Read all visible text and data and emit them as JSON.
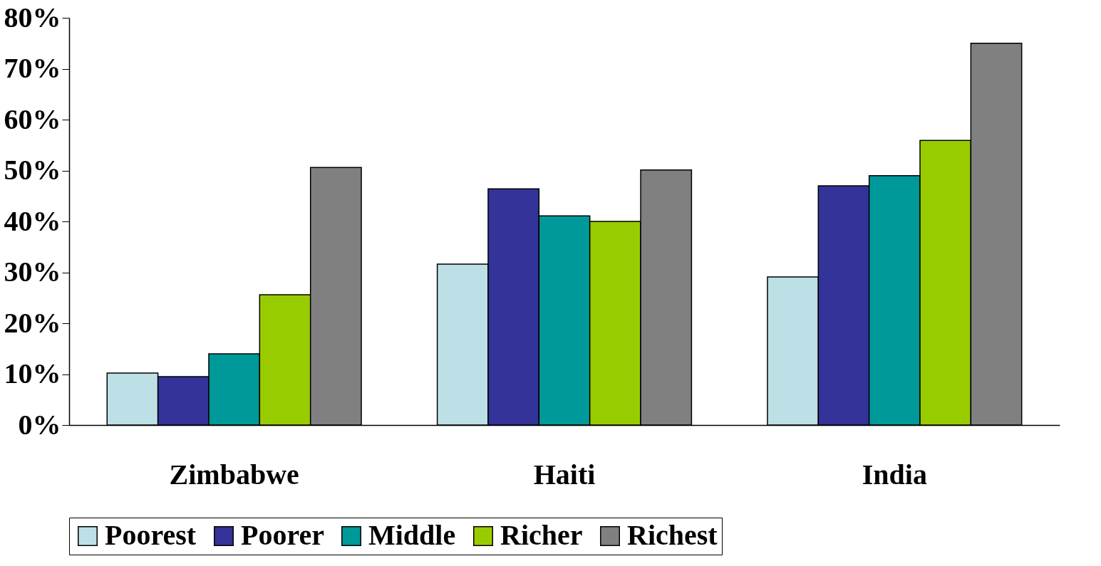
{
  "chart_data": {
    "type": "bar",
    "categories": [
      "Zimbabwe",
      "Haiti",
      "India"
    ],
    "series": [
      {
        "name": "Poorest",
        "color": "#bde0e6",
        "values": [
          10.2,
          31.6,
          29.1
        ]
      },
      {
        "name": "Poorer",
        "color": "#333399",
        "values": [
          9.5,
          46.4,
          47.0
        ]
      },
      {
        "name": "Middle",
        "color": "#009999",
        "values": [
          14.0,
          41.1,
          49.0
        ]
      },
      {
        "name": "Richer",
        "color": "#99cc00",
        "values": [
          25.6,
          40.0,
          55.9
        ]
      },
      {
        "name": "Richest",
        "color": "#808080",
        "values": [
          50.6,
          50.1,
          75.0
        ]
      }
    ],
    "ylim": [
      0,
      80
    ],
    "yticks": [
      {
        "value": 0,
        "label": "0%"
      },
      {
        "value": 10,
        "label": "10%"
      },
      {
        "value": 20,
        "label": "20%"
      },
      {
        "value": 30,
        "label": "30%"
      },
      {
        "value": 40,
        "label": "40%"
      },
      {
        "value": 50,
        "label": "50%"
      },
      {
        "value": 60,
        "label": "60%"
      },
      {
        "value": 70,
        "label": "70%"
      },
      {
        "value": 80,
        "label": "80%"
      }
    ],
    "grid": false,
    "legend": "bottom"
  }
}
